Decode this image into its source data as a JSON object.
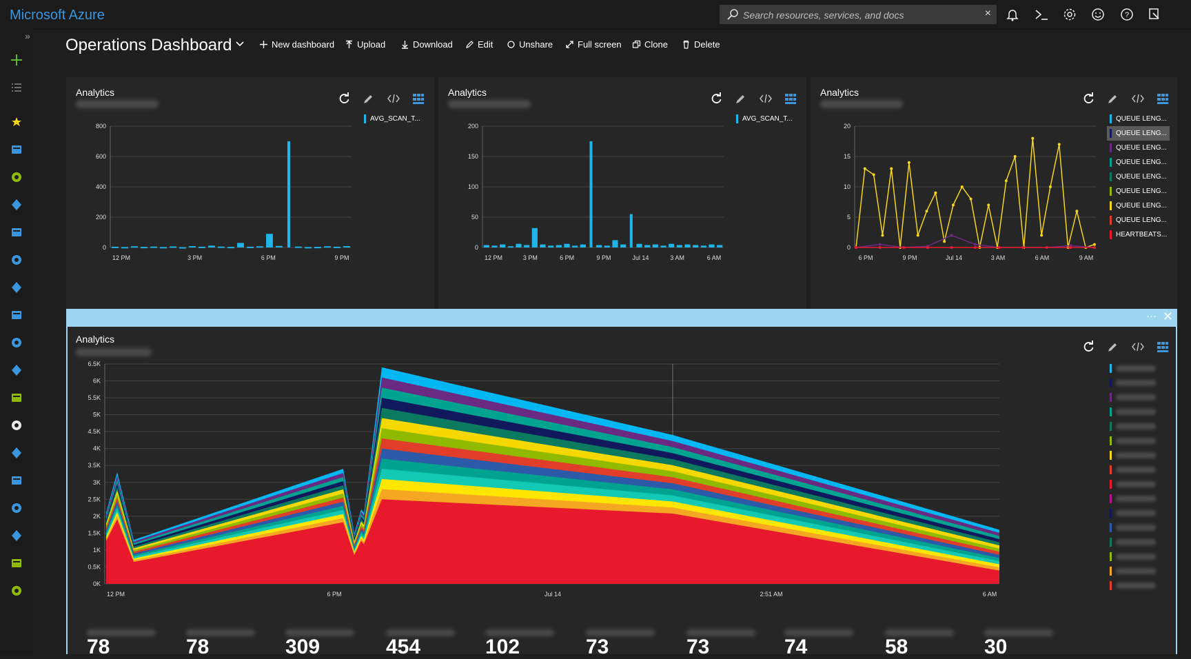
{
  "app": {
    "brand": "Microsoft Azure"
  },
  "search": {
    "placeholder": "Search resources, services, and docs",
    "clear": "×"
  },
  "topbar_icons": [
    "bell-icon",
    "cloud-shell-icon",
    "gear-icon",
    "smiley-icon",
    "help-icon",
    "feedback-icon"
  ],
  "rail": {
    "expand": "»",
    "items": [
      "create-resource-icon",
      "all-services-icon",
      "favorites-star-icon",
      "dashboard-icon",
      "all-resources-icon",
      "resource-groups-icon",
      "app-services-icon",
      "sql-databases-icon",
      "function-apps-icon",
      "cosmos-db-icon",
      "virtual-machines-icon",
      "load-balancers-icon",
      "storage-accounts-icon",
      "virtual-networks-icon",
      "active-directory-icon",
      "monitor-icon",
      "advisor-icon",
      "security-center-icon",
      "cost-management-icon",
      "help-support-icon"
    ]
  },
  "dashboard": {
    "title": "Operations Dashboard",
    "commands": [
      {
        "label": "New dashboard",
        "icon": "plus-icon"
      },
      {
        "label": "Upload",
        "icon": "upload-icon"
      },
      {
        "label": "Download",
        "icon": "download-icon"
      },
      {
        "label": "Edit",
        "icon": "pencil-icon"
      },
      {
        "label": "Unshare",
        "icon": "unshare-icon"
      },
      {
        "label": "Full screen",
        "icon": "fullscreen-icon"
      },
      {
        "label": "Clone",
        "icon": "clone-icon"
      },
      {
        "label": "Delete",
        "icon": "trash-icon"
      }
    ]
  },
  "tiles": [
    {
      "title": "Analytics",
      "legend": [
        "AVG_SCAN_T..."
      ]
    },
    {
      "title": "Analytics",
      "legend": [
        "AVG_SCAN_T..."
      ]
    },
    {
      "title": "Analytics",
      "legend": [
        "QUEUE LENG...",
        "QUEUE LENG...",
        "QUEUE LENG...",
        "QUEUE LENG...",
        "QUEUE LENG...",
        "QUEUE LENG...",
        "QUEUE LENG...",
        "QUEUE LENG...",
        "HEARTBEATS..."
      ]
    },
    {
      "title": "Analytics"
    }
  ],
  "big_tile": {
    "ellipsis": "···",
    "close": "✕"
  },
  "stats": [
    "78",
    "78",
    "309",
    "454",
    "102",
    "73",
    "73",
    "74",
    "58",
    "30"
  ],
  "colors": {
    "accent": "#3a96dd",
    "cyan": "#1fb5e8",
    "yellow": "#f7d51a",
    "selected_border": "#9ed6f2",
    "stack": [
      "#e8192c",
      "#f5a623",
      "#ffe600",
      "#13c9b4",
      "#00a38f",
      "#2d5aa8",
      "#e03e2a",
      "#8fba00",
      "#f5d800",
      "#0b7a5f",
      "#11195c",
      "#00a38f",
      "#6a2a82",
      "#00b7f1"
    ]
  },
  "chart_data": [
    {
      "type": "bar",
      "title": "Analytics",
      "series": [
        {
          "name": "AVG_SCAN_T...",
          "values": [
            5,
            3,
            8,
            4,
            6,
            3,
            7,
            2,
            9,
            5,
            12,
            6,
            4,
            30,
            5,
            8,
            90,
            10,
            700,
            6,
            3,
            4,
            8,
            5,
            9
          ]
        }
      ],
      "x_ticks": [
        "12 PM",
        "3 PM",
        "6 PM",
        "9 PM"
      ],
      "y_ticks": [
        "0",
        "200",
        "400",
        "600",
        "800"
      ],
      "ylim": [
        0,
        800
      ]
    },
    {
      "type": "bar",
      "title": "Analytics",
      "series": [
        {
          "name": "AVG_SCAN_T...",
          "values": [
            4,
            3,
            5,
            2,
            6,
            4,
            32,
            5,
            3,
            4,
            6,
            3,
            5,
            175,
            4,
            3,
            12,
            5,
            55,
            6,
            4,
            5,
            3,
            6,
            4,
            5,
            4,
            3,
            5,
            4
          ]
        }
      ],
      "x_ticks": [
        "12 PM",
        "3 PM",
        "6 PM",
        "9 PM",
        "Jul 14",
        "3 AM",
        "6 AM"
      ],
      "y_ticks": [
        "0",
        "50",
        "100",
        "150",
        "200"
      ],
      "ylim": [
        0,
        200
      ]
    },
    {
      "type": "line",
      "title": "Analytics",
      "x_ticks": [
        "6 PM",
        "9 PM",
        "Jul 14",
        "3 AM",
        "6 AM",
        "9 AM"
      ],
      "y_ticks": [
        "0",
        "5",
        "10",
        "15",
        "20"
      ],
      "ylim": [
        0,
        20
      ],
      "series": [
        {
          "name": "QUEUE LENG...",
          "color": "#f7d51a",
          "values": [
            0,
            13,
            12,
            2,
            13,
            0,
            14,
            2,
            6,
            9,
            1,
            7,
            10,
            8,
            0,
            7,
            0,
            11,
            15,
            0,
            18,
            2,
            10,
            17,
            0,
            6,
            0,
            0.5
          ]
        },
        {
          "name": "QUEUE LENG...",
          "color": "#6a2a82",
          "values": [
            0,
            0.5,
            0,
            0.2,
            2,
            0.5,
            0,
            0,
            0,
            0.3,
            0
          ]
        },
        {
          "name": "HEARTBEATS...",
          "color": "#e8192c",
          "values": [
            0,
            0,
            0,
            0,
            0,
            0,
            0,
            0,
            0,
            0,
            0
          ]
        }
      ]
    },
    {
      "type": "area",
      "title": "Analytics",
      "x_ticks": [
        "12 PM",
        "6 PM",
        "Jul 14",
        "2:51 AM",
        "6 AM"
      ],
      "y_ticks": [
        "0K",
        "0.5K",
        "1K",
        "1.5K",
        "2K",
        "2.5K",
        "3K",
        "3.5K",
        "4K",
        "4.5K",
        "5K",
        "5.5K",
        "6K",
        "6.5K"
      ],
      "ylim": [
        0,
        6.5
      ],
      "stacked_total_k": [
        2.1,
        3.3,
        1.3,
        3.4,
        1.5,
        2.2,
        2.1,
        6.4,
        4.4,
        1.6
      ],
      "base_k": [
        1.2,
        1.8,
        0.6,
        1.7,
        0.8,
        1.2,
        1.1,
        2.2,
        1.9,
        0.3
      ]
    }
  ]
}
